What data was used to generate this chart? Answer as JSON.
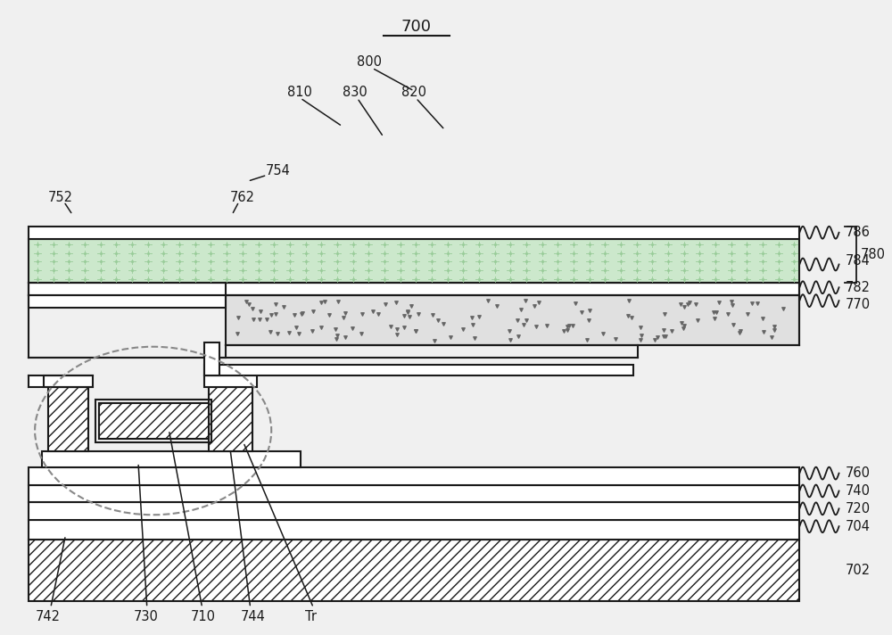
{
  "bg_color": "#f0f0f0",
  "line_color": "#1a1a1a",
  "dot_fill_color": "#cce8cc",
  "scatter_fill_color": "#e0e0e0",
  "wavy_color": "#555555"
}
